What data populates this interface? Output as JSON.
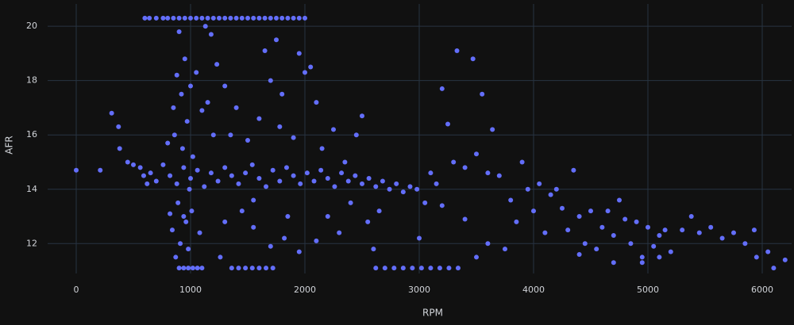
{
  "chart_data": {
    "type": "scatter",
    "x_label": "RPM",
    "y_label": "AFR",
    "color": "#636efa",
    "grid": true,
    "xlim": [
      -250,
      6257
    ],
    "ylim": [
      10.9,
      20.82
    ],
    "xticks": [
      0,
      1000,
      2000,
      3000,
      4000,
      5000,
      6000
    ],
    "yticks": [
      12,
      14,
      16,
      18,
      20
    ],
    "x": [
      600,
      640,
      700,
      760,
      800,
      850,
      900,
      950,
      1000,
      1050,
      1100,
      1150,
      1200,
      1250,
      1300,
      1350,
      1400,
      1450,
      1500,
      1550,
      1600,
      1650,
      1700,
      1750,
      1800,
      1850,
      1900,
      1950,
      2000,
      900,
      940,
      980,
      1020,
      1060,
      1100,
      1360,
      1420,
      1480,
      1540,
      1600,
      1660,
      1720,
      2620,
      2700,
      2780,
      2860,
      2940,
      3020,
      3100,
      3180,
      3260,
      3340,
      0,
      210,
      310,
      370,
      380,
      450,
      500,
      560,
      590,
      620,
      800,
      820,
      840,
      850,
      860,
      870,
      880,
      890,
      900,
      910,
      920,
      930,
      940,
      950,
      960,
      970,
      980,
      990,
      1000,
      1010,
      1020,
      1050,
      1080,
      1100,
      1130,
      1150,
      1180,
      1200,
      1230,
      1260,
      650,
      700,
      760,
      820,
      880,
      940,
      1000,
      1060,
      1120,
      1180,
      1240,
      1300,
      1360,
      1420,
      1480,
      1540,
      1600,
      1660,
      1720,
      1780,
      1840,
      1900,
      1960,
      2020,
      2080,
      2140,
      2200,
      2260,
      2320,
      2380,
      2440,
      2500,
      2560,
      2620,
      2680,
      2740,
      2800,
      2860,
      2920,
      2980,
      1300,
      1350,
      1400,
      1450,
      1500,
      1550,
      1600,
      1650,
      1700,
      1750,
      1780,
      1800,
      1820,
      1850,
      1900,
      1950,
      2000,
      2050,
      2100,
      2150,
      2200,
      2250,
      2300,
      2350,
      2400,
      2450,
      2500,
      2550,
      2600,
      2650,
      1700,
      1950,
      2100,
      1300,
      1550,
      3050,
      3100,
      3150,
      3200,
      3250,
      3300,
      3330,
      3400,
      3470,
      3500,
      3550,
      3600,
      3640,
      3700,
      3750,
      3800,
      3850,
      3900,
      3950,
      4000,
      4050,
      4100,
      4150,
      4200,
      4250,
      4300,
      4350,
      4400,
      4450,
      4500,
      3600,
      3400,
      3200,
      3500,
      3000,
      4550,
      4600,
      4650,
      4700,
      4750,
      4800,
      4850,
      4900,
      4950,
      5000,
      5050,
      5100,
      5150,
      5200,
      5300,
      5380,
      5450,
      5550,
      5650,
      5750,
      5850,
      5930,
      5950,
      6050,
      6100,
      6200,
      4400,
      4700,
      4950,
      5100
    ],
    "values": [
      20.3,
      20.3,
      20.3,
      20.3,
      20.3,
      20.3,
      20.3,
      20.3,
      20.3,
      20.3,
      20.3,
      20.3,
      20.3,
      20.3,
      20.3,
      20.3,
      20.3,
      20.3,
      20.3,
      20.3,
      20.3,
      20.3,
      20.3,
      20.3,
      20.3,
      20.3,
      20.3,
      20.3,
      20.3,
      11.1,
      11.1,
      11.1,
      11.1,
      11.1,
      11.1,
      11.1,
      11.1,
      11.1,
      11.1,
      11.1,
      11.1,
      11.1,
      11.1,
      11.1,
      11.1,
      11.1,
      11.1,
      11.1,
      11.1,
      11.1,
      11.1,
      11.1,
      14.7,
      14.7,
      16.8,
      16.3,
      15.5,
      15.0,
      14.9,
      14.8,
      14.5,
      14.2,
      15.7,
      13.1,
      12.5,
      17.0,
      16.0,
      11.5,
      18.2,
      13.5,
      19.8,
      12.0,
      17.5,
      15.5,
      13.0,
      18.8,
      12.8,
      16.5,
      11.8,
      14.0,
      17.8,
      13.2,
      15.2,
      18.3,
      12.4,
      16.9,
      20.0,
      17.2,
      19.7,
      16.0,
      18.6,
      11.5,
      14.6,
      14.3,
      14.9,
      14.5,
      14.2,
      14.8,
      14.4,
      14.7,
      14.1,
      14.6,
      14.3,
      14.8,
      14.5,
      14.2,
      14.6,
      14.9,
      14.4,
      14.1,
      14.7,
      14.3,
      14.8,
      14.5,
      14.2,
      14.6,
      14.3,
      14.7,
      14.4,
      14.1,
      14.6,
      14.3,
      14.5,
      14.2,
      14.4,
      14.1,
      14.3,
      14.0,
      14.2,
      13.9,
      14.1,
      14.0,
      17.8,
      16.0,
      17.0,
      13.2,
      15.8,
      12.6,
      16.6,
      19.1,
      18.0,
      19.5,
      16.3,
      17.5,
      12.2,
      13.0,
      15.9,
      19.0,
      18.3,
      18.5,
      17.2,
      15.5,
      13.0,
      16.2,
      12.4,
      15.0,
      13.5,
      16.0,
      16.7,
      12.8,
      11.8,
      13.2,
      11.9,
      11.7,
      12.1,
      12.8,
      13.6,
      13.5,
      14.6,
      14.2,
      17.7,
      16.4,
      15.0,
      19.1,
      14.8,
      18.8,
      15.3,
      17.5,
      14.6,
      16.2,
      14.5,
      11.8,
      13.6,
      12.8,
      15.0,
      14.0,
      13.2,
      14.2,
      12.4,
      13.8,
      14.0,
      13.3,
      12.5,
      14.7,
      13.0,
      12.0,
      13.2,
      12.0,
      12.9,
      13.4,
      11.5,
      12.2,
      11.8,
      12.6,
      13.2,
      12.3,
      13.6,
      12.9,
      12.0,
      12.8,
      11.5,
      12.6,
      11.9,
      12.3,
      12.5,
      11.7,
      12.5,
      13.0,
      12.4,
      12.6,
      12.2,
      12.4,
      12.0,
      12.5,
      11.5,
      11.7,
      11.1,
      11.4,
      11.6,
      11.3,
      11.3,
      11.5
    ]
  }
}
